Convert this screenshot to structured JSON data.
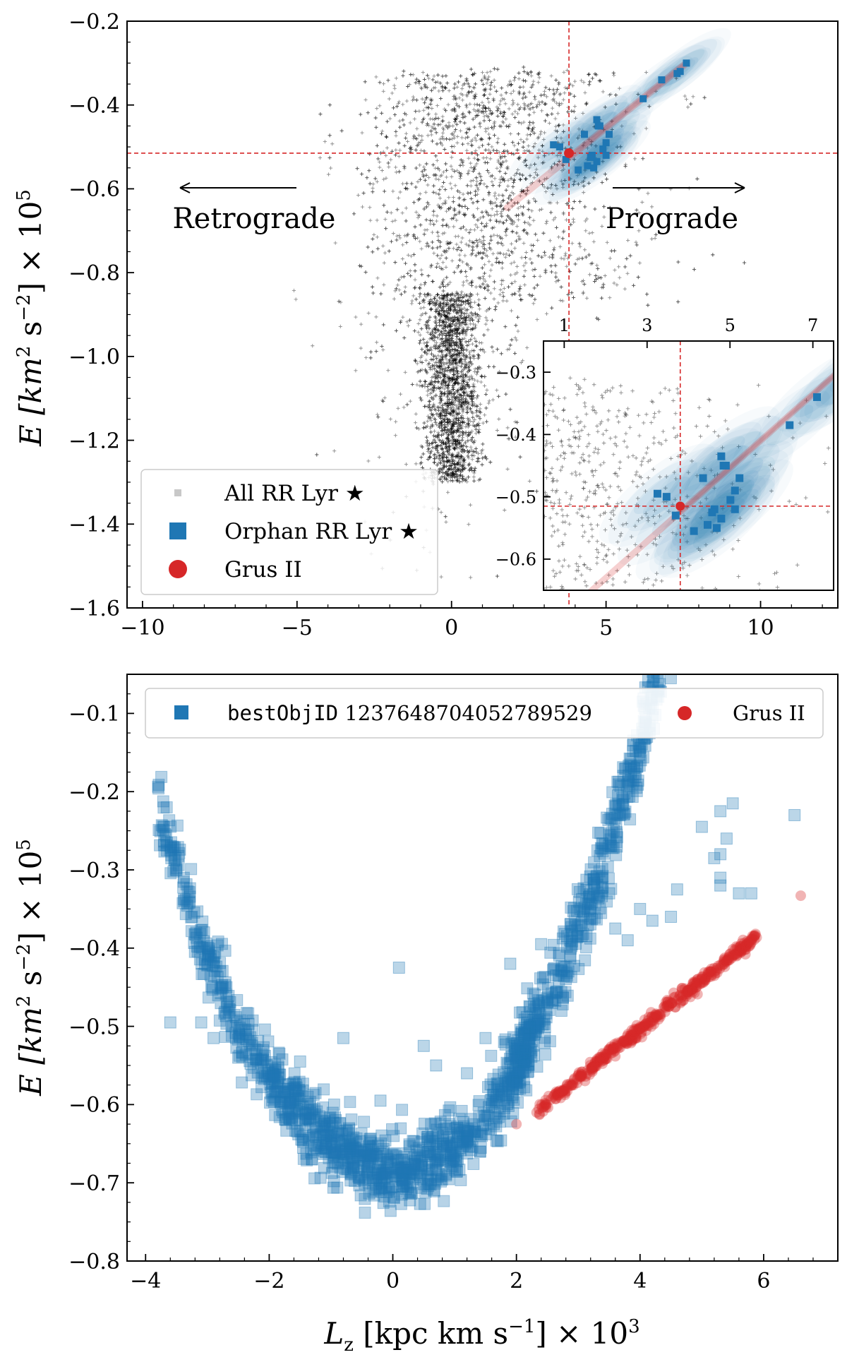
{
  "chart_data": [
    {
      "type": "scatter",
      "panel": "top",
      "xlim": [
        -10.5,
        12.5
      ],
      "ylim": [
        -1.6,
        -0.2
      ],
      "xticks": [
        -10,
        -5,
        0,
        5,
        10
      ],
      "xtick_labels": [
        "−10",
        "−5",
        "0",
        "5",
        "10"
      ],
      "yticks": [
        -1.6,
        -1.4,
        -1.2,
        -1.0,
        -0.8,
        -0.6,
        -0.4,
        -0.2
      ],
      "ytick_labels": [
        "−1.6",
        "−1.4",
        "−1.2",
        "−1.0",
        "−0.8",
        "−0.6",
        "−0.4",
        "−0.2"
      ],
      "ylabel_main": "E [km",
      "ylabel_sup1": "2",
      "ylabel_mid": " s",
      "ylabel_sup2": "−2",
      "ylabel_end": "] × 10",
      "ylabel_sup3": "5",
      "annotations": {
        "retrograde": "Retrograde",
        "prograde": "Prograde"
      },
      "reference_lines": {
        "x": 3.8,
        "y": -0.515
      },
      "legend": {
        "position": "lower-left",
        "entries": [
          {
            "label": "All RR Lyr ★",
            "color": "#c8c8c8",
            "marker": "square-small"
          },
          {
            "label": "Orphan RR Lyr ★",
            "color": "#1f77b4",
            "marker": "square"
          },
          {
            "label": "Grus II",
            "color": "#d62728",
            "marker": "circle"
          }
        ]
      },
      "grus_ii": {
        "x": 3.8,
        "y": -0.515
      },
      "orphan_rr_lyr": [
        [
          7.6,
          -0.3
        ],
        [
          7.4,
          -0.32
        ],
        [
          7.3,
          -0.325
        ],
        [
          6.8,
          -0.34
        ],
        [
          6.2,
          -0.385
        ],
        [
          4.7,
          -0.435
        ],
        [
          4.75,
          -0.45
        ],
        [
          4.8,
          -0.45
        ],
        [
          5.1,
          -0.47
        ],
        [
          5.0,
          -0.49
        ],
        [
          4.3,
          -0.47
        ],
        [
          3.5,
          -0.5
        ],
        [
          3.7,
          -0.53
        ],
        [
          4.55,
          -0.52
        ],
        [
          4.5,
          -0.525
        ],
        [
          4.7,
          -0.535
        ],
        [
          4.4,
          -0.545
        ],
        [
          4.1,
          -0.555
        ],
        [
          4.6,
          -0.55
        ],
        [
          5.0,
          -0.52
        ],
        [
          3.3,
          -0.495
        ],
        [
          4.9,
          -0.505
        ]
      ],
      "inset": {
        "position": "lower-right",
        "xlim": [
          0.5,
          7.5
        ],
        "ylim": [
          -0.65,
          -0.25
        ],
        "xticks": [
          1,
          3,
          5,
          7
        ],
        "xtick_labels": [
          "1",
          "3",
          "5",
          "7"
        ],
        "yticks": [
          -0.6,
          -0.5,
          -0.4,
          -0.3
        ],
        "ytick_labels": [
          "−0.6",
          "−0.5",
          "−0.4",
          "−0.3"
        ],
        "reference_lines": {
          "x": 3.8,
          "y": -0.515
        }
      }
    },
    {
      "type": "scatter",
      "panel": "bottom",
      "xlim": [
        -4.3,
        7.2
      ],
      "ylim": [
        -0.8,
        -0.05
      ],
      "xticks": [
        -4,
        -2,
        0,
        2,
        4,
        6
      ],
      "xtick_labels": [
        "−4",
        "−2",
        "0",
        "2",
        "4",
        "6"
      ],
      "yticks": [
        -0.8,
        -0.7,
        -0.6,
        -0.5,
        -0.4,
        -0.3,
        -0.2,
        -0.1
      ],
      "ytick_labels": [
        "−0.8",
        "−0.7",
        "−0.6",
        "−0.5",
        "−0.4",
        "−0.3",
        "−0.2",
        "−0.1"
      ],
      "ylabel_main": "E [km",
      "ylabel_sup1": "2",
      "ylabel_mid": " s",
      "ylabel_sup2": "−2",
      "ylabel_end": "] × 10",
      "ylabel_sup3": "5",
      "xlabel_main": "L",
      "xlabel_sub": "z",
      "xlabel_mid": " [kpc km s",
      "xlabel_sup1": "−1",
      "xlabel_end": "] × 10",
      "xlabel_sup2": "3",
      "legend": {
        "position": "top",
        "entries": [
          {
            "label_mono": "bestObjID",
            "label_rest": " 1237648704052789529",
            "color": "#1f77b4",
            "marker": "square"
          },
          {
            "label": "Grus II",
            "color": "#d62728",
            "marker": "circle"
          }
        ]
      },
      "grus_ii_track": {
        "x_start": 2.3,
        "y_start": -0.61,
        "x_end": 5.9,
        "y_end": -0.385,
        "outliers": [
          [
            6.6,
            -0.333
          ],
          [
            2.0,
            -0.625
          ]
        ]
      },
      "orphan_highlights": [
        [
          5.5,
          -0.215
        ],
        [
          5.3,
          -0.225
        ],
        [
          6.5,
          -0.23
        ],
        [
          5.0,
          -0.245
        ],
        [
          5.4,
          -0.26
        ],
        [
          5.2,
          -0.285
        ],
        [
          5.3,
          -0.28
        ],
        [
          5.3,
          -0.31
        ],
        [
          5.3,
          -0.32
        ],
        [
          4.6,
          -0.325
        ],
        [
          5.8,
          -0.33
        ],
        [
          5.6,
          -0.33
        ],
        [
          3.5,
          -0.33
        ],
        [
          4.0,
          -0.35
        ],
        [
          4.5,
          -0.36
        ],
        [
          4.2,
          -0.365
        ],
        [
          3.6,
          -0.375
        ],
        [
          3.8,
          -0.39
        ],
        [
          2.4,
          -0.395
        ],
        [
          1.9,
          -0.42
        ],
        [
          0.1,
          -0.425
        ],
        [
          -0.8,
          -0.515
        ],
        [
          -3.6,
          -0.495
        ],
        [
          -3.1,
          -0.495
        ],
        [
          -2.9,
          -0.515
        ],
        [
          -2.5,
          -0.54
        ],
        [
          -1.5,
          -0.545
        ],
        [
          0.5,
          -0.525
        ],
        [
          1.5,
          -0.515
        ],
        [
          1.8,
          -0.52
        ],
        [
          0.7,
          -0.55
        ],
        [
          1.2,
          -0.56
        ],
        [
          -0.2,
          -0.595
        ],
        [
          -1.5,
          -0.6
        ],
        [
          -0.7,
          -0.65
        ]
      ]
    }
  ]
}
